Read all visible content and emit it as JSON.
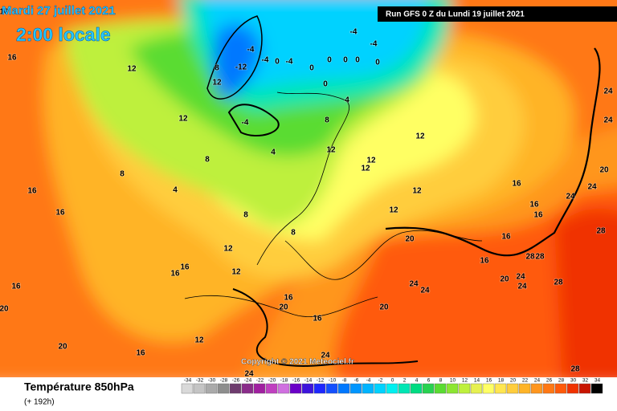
{
  "header": {
    "date": "Mardi 27 juillet 2021",
    "time": "2:00 locale",
    "run": "Run GFS 0 Z du Lundi 19 juillet 2021"
  },
  "copyright": "Copyright © 2021 Meteociel.fr",
  "footer": {
    "title": "Température 850hPa",
    "lead": "(+ 192h)"
  },
  "scale": {
    "labels": [
      -34,
      -32,
      -30,
      -28,
      -26,
      -24,
      -22,
      -20,
      -18,
      -16,
      -14,
      -12,
      -10,
      -8,
      -6,
      -4,
      -2,
      0,
      2,
      4,
      6,
      8,
      10,
      12,
      14,
      16,
      18,
      20,
      22,
      24,
      26,
      28,
      30,
      32,
      34
    ],
    "colors": [
      "#d9d9d9",
      "#c4c4c4",
      "#aaaaaa",
      "#8e8e8e",
      "#6e3c6e",
      "#8a2d8a",
      "#a020a0",
      "#c040c0",
      "#d070e0",
      "#6a00c8",
      "#3c14dc",
      "#1e28ff",
      "#1450ff",
      "#0078ff",
      "#0096ff",
      "#00b4ff",
      "#00d2ff",
      "#00f0f0",
      "#00e6b4",
      "#00dc82",
      "#28d250",
      "#5adc32",
      "#8ce632",
      "#bef03c",
      "#e6f050",
      "#ffff64",
      "#ffe650",
      "#ffcd3c",
      "#ffb428",
      "#ff961e",
      "#ff7814",
      "#ff5a0a",
      "#f03200",
      "#c81400",
      "#000000"
    ]
  },
  "contour_labels": [
    "-12",
    "8",
    "12",
    "-4",
    "-4",
    "-4",
    "0",
    "0",
    "-4",
    "-4",
    "0",
    "0",
    "0",
    "0",
    "0",
    "-4",
    "8",
    "4",
    "12",
    "12",
    "12",
    "12",
    "12",
    "12",
    "4",
    "4",
    "8",
    "8",
    "12",
    "12",
    "16",
    "16",
    "16",
    "16",
    "16",
    "12",
    "12",
    "8",
    "8",
    "16",
    "20",
    "16",
    "20",
    "20",
    "24",
    "24",
    "16",
    "16",
    "16",
    "16",
    "16",
    "20",
    "24",
    "28",
    "28",
    "24",
    "28",
    "24",
    "24",
    "20",
    "24",
    "24",
    "28",
    "28",
    "24",
    "24",
    "20",
    "16",
    "12",
    "16",
    "16",
    "20"
  ]
}
